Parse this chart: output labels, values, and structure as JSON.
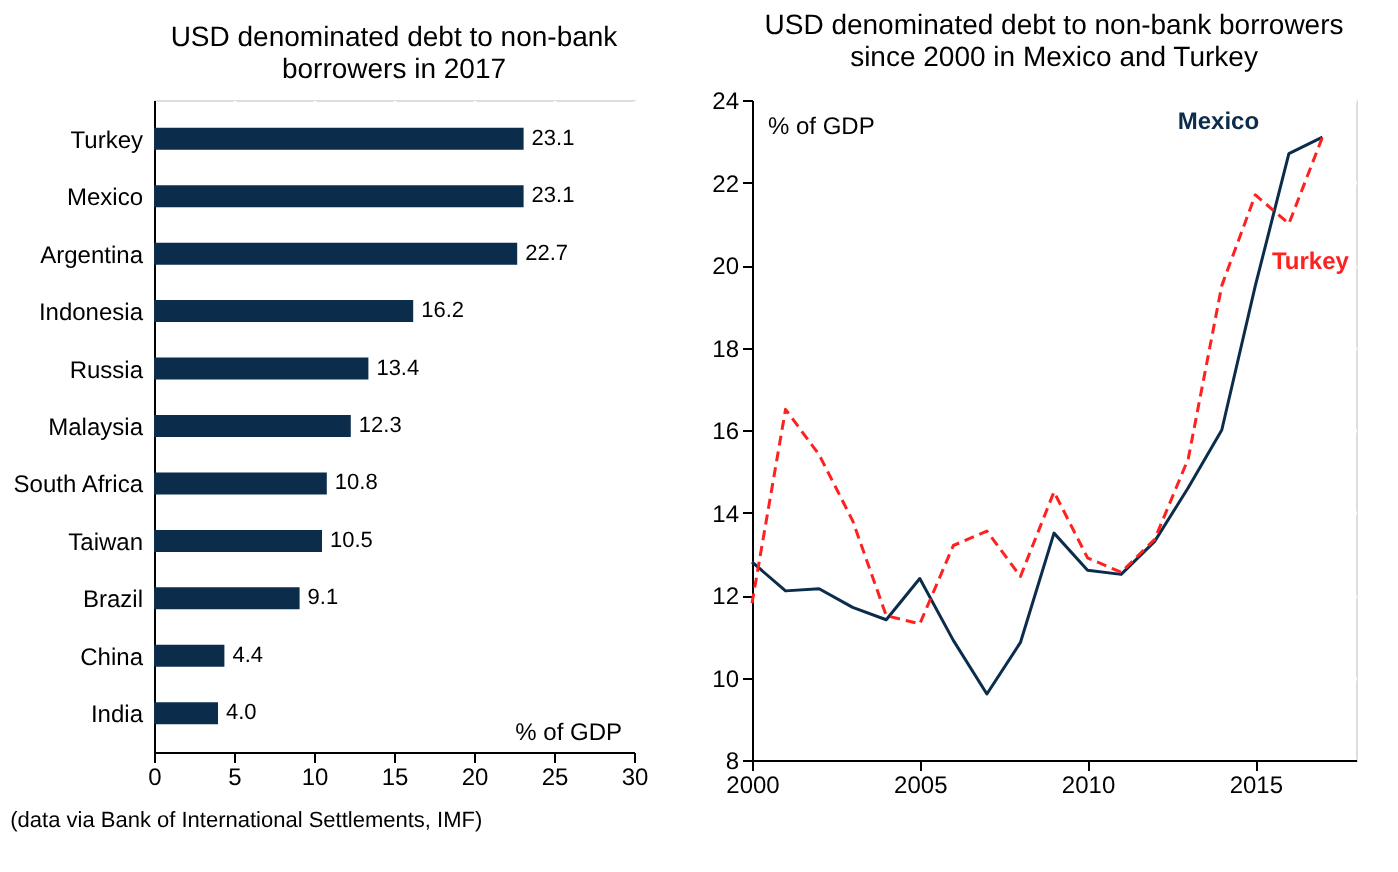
{
  "chart_data": [
    {
      "type": "bar",
      "orientation": "horizontal",
      "title": "USD denominated debt to non-bank\nborrowers in 2017",
      "categories": [
        "Turkey",
        "Mexico",
        "Argentina",
        "Indonesia",
        "Russia",
        "Malaysia",
        "South Africa",
        "Taiwan",
        "Brazil",
        "China",
        "India"
      ],
      "values": [
        23.1,
        23.1,
        22.7,
        16.2,
        13.4,
        12.3,
        10.8,
        10.5,
        9.1,
        4.4,
        4.0
      ],
      "value_labels": [
        "23.1",
        "23.1",
        "22.7",
        "16.2",
        "13.4",
        "12.3",
        "10.8",
        "10.5",
        "9.1",
        "4.4",
        "4.0"
      ],
      "color": "#0b2d4b",
      "xlim": [
        0,
        30
      ],
      "xticks": [
        0,
        5,
        10,
        15,
        20,
        25,
        30
      ],
      "grid": "x",
      "annotations": [
        "% of GDP",
        "(data via Bank of International Settlements, IMF)"
      ]
    },
    {
      "type": "line",
      "title": "USD denominated debt to non-bank borrowers\nsince 2000 in Mexico and Turkey",
      "x": [
        2000,
        2001,
        2002,
        2003,
        2004,
        2005,
        2006,
        2007,
        2008,
        2009,
        2010,
        2011,
        2012,
        2013,
        2014,
        2015,
        2016,
        2017
      ],
      "series": [
        {
          "name": "Mexico",
          "color": "#0b2d4b",
          "line_style": "solid",
          "values": [
            12.8,
            12.1,
            12.15,
            11.7,
            11.4,
            12.4,
            10.9,
            9.6,
            10.85,
            13.5,
            12.6,
            12.5,
            13.3,
            14.6,
            16.0,
            19.5,
            22.7,
            23.1
          ]
        },
        {
          "name": "Turkey",
          "color": "#ff2020",
          "line_style": "dashed",
          "values": [
            11.8,
            16.5,
            15.4,
            13.8,
            11.5,
            11.3,
            13.2,
            13.55,
            12.45,
            14.5,
            12.9,
            12.55,
            13.35,
            15.3,
            19.5,
            21.7,
            21.0,
            23.1
          ]
        }
      ],
      "xlim": [
        2000,
        2018
      ],
      "xticks": [
        2000,
        2005,
        2010,
        2015
      ],
      "ylim": [
        8,
        24
      ],
      "yticks": [
        8,
        10,
        12,
        14,
        16,
        18,
        20,
        22,
        24
      ],
      "grid": true,
      "legend": false,
      "annotations": [
        "% of GDP"
      ]
    }
  ]
}
